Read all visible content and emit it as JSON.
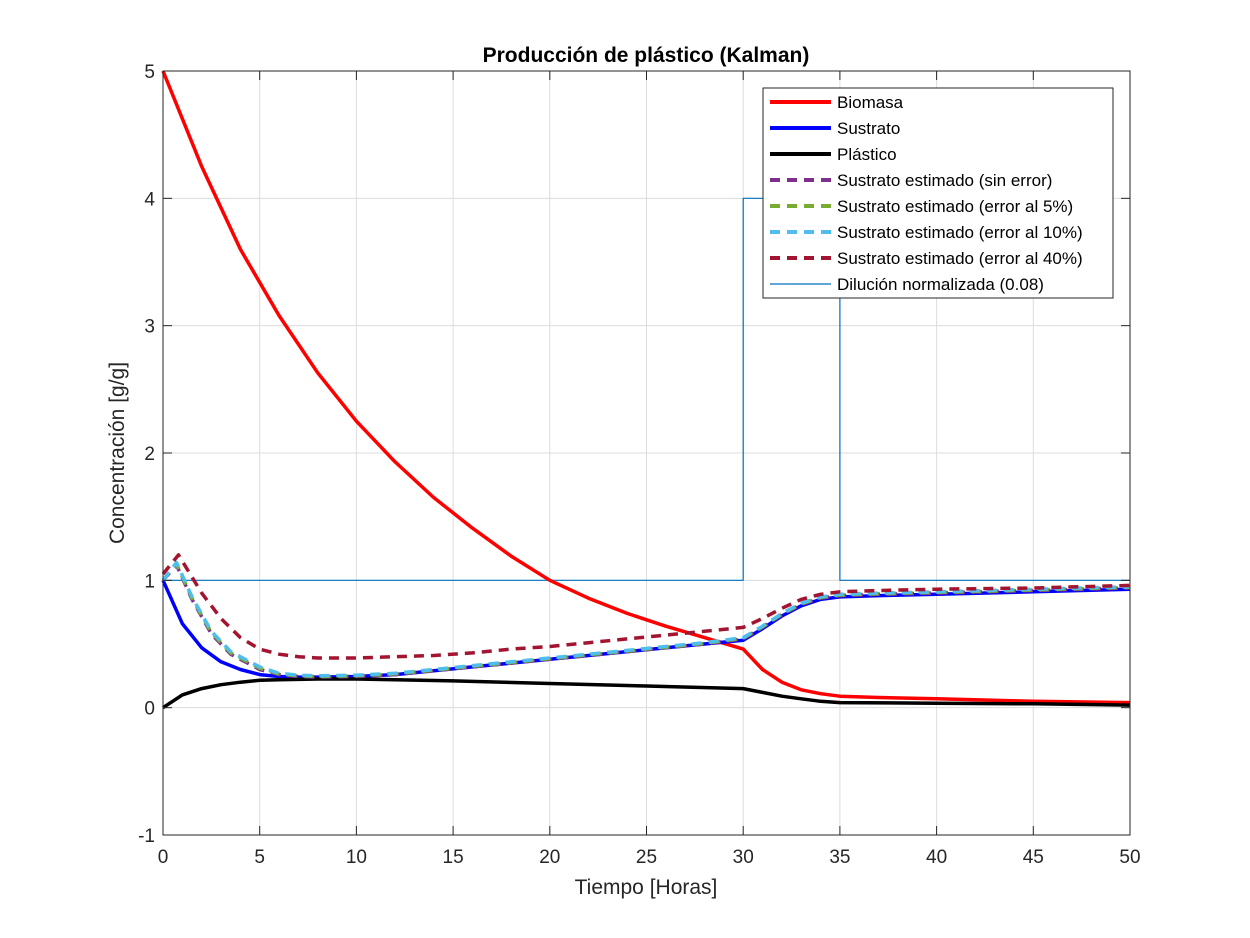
{
  "chart_data": {
    "type": "line",
    "title": "Producción de plástico (Kalman)",
    "xlabel": "Tiempo [Horas]",
    "ylabel": "Concentración [g/g]",
    "xlim": [
      0,
      50
    ],
    "ylim": [
      -1,
      5
    ],
    "xticks": [
      0,
      5,
      10,
      15,
      20,
      25,
      30,
      35,
      40,
      45,
      50
    ],
    "yticks": [
      -1,
      0,
      1,
      2,
      3,
      4,
      5
    ],
    "grid": true,
    "legend_position": "top-right",
    "series": [
      {
        "name": "Biomasa",
        "color": "#ff0000",
        "style": "solid",
        "width": 3.5,
        "x": [
          0,
          2,
          4,
          6,
          8,
          10,
          12,
          14,
          16,
          18,
          20,
          22,
          24,
          26,
          28,
          30,
          31,
          32,
          33,
          34,
          35,
          37,
          40,
          45,
          50
        ],
        "y": [
          5.0,
          4.25,
          3.6,
          3.08,
          2.63,
          2.25,
          1.93,
          1.65,
          1.41,
          1.19,
          1.0,
          0.86,
          0.74,
          0.64,
          0.55,
          0.46,
          0.3,
          0.2,
          0.14,
          0.11,
          0.09,
          0.08,
          0.07,
          0.05,
          0.04
        ]
      },
      {
        "name": "Sustrato",
        "color": "#0000ff",
        "style": "solid",
        "width": 3.5,
        "x": [
          0,
          1,
          2,
          3,
          4,
          5,
          6,
          7,
          8,
          10,
          12,
          14,
          16,
          18,
          20,
          22,
          24,
          26,
          28,
          30,
          31,
          32,
          33,
          34,
          35,
          37,
          40,
          45,
          50
        ],
        "y": [
          1.0,
          0.66,
          0.47,
          0.36,
          0.3,
          0.26,
          0.245,
          0.24,
          0.24,
          0.245,
          0.26,
          0.29,
          0.32,
          0.35,
          0.38,
          0.41,
          0.44,
          0.47,
          0.5,
          0.53,
          0.62,
          0.72,
          0.8,
          0.85,
          0.87,
          0.88,
          0.89,
          0.91,
          0.93
        ]
      },
      {
        "name": "Plástico",
        "color": "#000000",
        "style": "solid",
        "width": 3.5,
        "x": [
          0,
          1,
          2,
          3,
          4,
          5,
          6,
          8,
          10,
          12,
          15,
          20,
          25,
          30,
          31,
          32,
          33,
          34,
          35,
          40,
          45,
          50
        ],
        "y": [
          0.0,
          0.1,
          0.15,
          0.18,
          0.2,
          0.215,
          0.22,
          0.225,
          0.225,
          0.22,
          0.21,
          0.19,
          0.17,
          0.15,
          0.12,
          0.09,
          0.07,
          0.05,
          0.04,
          0.035,
          0.03,
          0.02
        ]
      },
      {
        "name": "Sustrato estimado (sin error)",
        "color": "#7e2f8e",
        "style": "dashed",
        "width": 3.5,
        "x": [
          0,
          0.7,
          1.5,
          2.5,
          3.5,
          5,
          6,
          7,
          8,
          10,
          12,
          14,
          16,
          18,
          20,
          22,
          24,
          26,
          28,
          30,
          31,
          32,
          33,
          34,
          35,
          37,
          40,
          45,
          50
        ],
        "y": [
          1.0,
          1.12,
          0.85,
          0.58,
          0.42,
          0.3,
          0.26,
          0.245,
          0.24,
          0.245,
          0.26,
          0.29,
          0.32,
          0.35,
          0.38,
          0.41,
          0.44,
          0.47,
          0.5,
          0.54,
          0.63,
          0.73,
          0.81,
          0.86,
          0.88,
          0.89,
          0.9,
          0.92,
          0.94
        ]
      },
      {
        "name": "Sustrato estimado (error al 5%)",
        "color": "#77ac30",
        "style": "dashed",
        "width": 3.5,
        "x": [
          0,
          0.7,
          1.5,
          2.5,
          3.5,
          5,
          6,
          7,
          8,
          10,
          12,
          14,
          16,
          18,
          20,
          22,
          24,
          26,
          28,
          30,
          31,
          32,
          33,
          34,
          35,
          37,
          40,
          45,
          50
        ],
        "y": [
          1.0,
          1.13,
          0.86,
          0.59,
          0.43,
          0.31,
          0.265,
          0.25,
          0.245,
          0.25,
          0.265,
          0.295,
          0.325,
          0.355,
          0.385,
          0.415,
          0.445,
          0.475,
          0.505,
          0.545,
          0.635,
          0.735,
          0.815,
          0.865,
          0.885,
          0.895,
          0.905,
          0.925,
          0.945
        ]
      },
      {
        "name": "Sustrato estimado (error al 10%)",
        "color": "#4dbeee",
        "style": "dashed",
        "width": 3.5,
        "x": [
          0,
          0.7,
          1.5,
          2.5,
          3.5,
          5,
          6,
          7,
          8,
          10,
          12,
          14,
          16,
          18,
          20,
          22,
          24,
          26,
          28,
          30,
          31,
          32,
          33,
          34,
          35,
          37,
          40,
          45,
          50
        ],
        "y": [
          1.0,
          1.14,
          0.87,
          0.6,
          0.44,
          0.32,
          0.27,
          0.255,
          0.25,
          0.255,
          0.27,
          0.3,
          0.33,
          0.36,
          0.39,
          0.42,
          0.45,
          0.48,
          0.51,
          0.55,
          0.64,
          0.74,
          0.82,
          0.87,
          0.89,
          0.9,
          0.91,
          0.93,
          0.95
        ]
      },
      {
        "name": "Sustrato estimado (error al 40%)",
        "color": "#a2142f",
        "style": "dashed",
        "width": 3.5,
        "x": [
          0,
          0.8,
          2,
          3,
          4,
          5,
          6,
          7,
          8,
          10,
          12,
          14,
          16,
          18,
          20,
          22,
          24,
          26,
          28,
          30,
          31,
          32,
          33,
          34,
          35,
          37,
          40,
          45,
          50
        ],
        "y": [
          1.05,
          1.2,
          0.9,
          0.7,
          0.55,
          0.46,
          0.42,
          0.4,
          0.39,
          0.39,
          0.4,
          0.41,
          0.43,
          0.46,
          0.48,
          0.51,
          0.54,
          0.57,
          0.6,
          0.63,
          0.7,
          0.78,
          0.85,
          0.89,
          0.91,
          0.92,
          0.93,
          0.94,
          0.96
        ]
      },
      {
        "name": "Dilución normalizada (0.08)",
        "color": "#0072bd",
        "style": "solid",
        "width": 1.2,
        "x": [
          0,
          30,
          30,
          35,
          35,
          50
        ],
        "y": [
          1,
          1,
          4,
          4,
          1,
          1
        ]
      }
    ]
  }
}
